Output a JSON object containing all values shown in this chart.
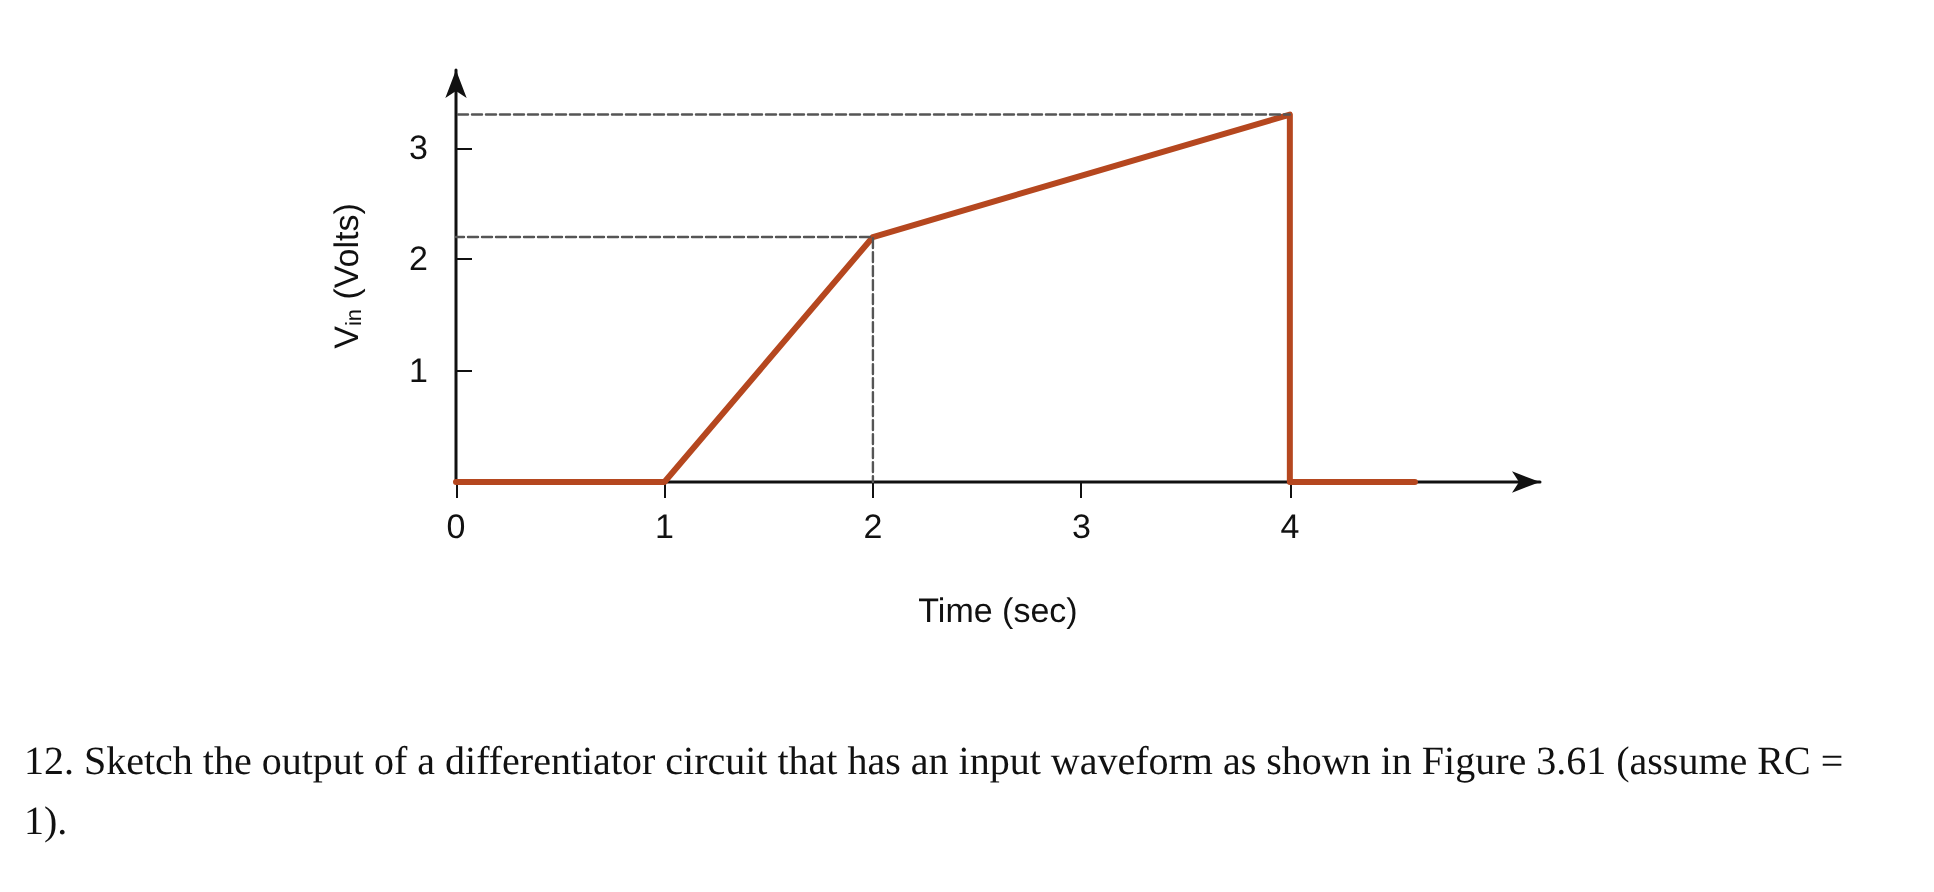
{
  "chart_data": {
    "type": "line",
    "xlabel": "Time (sec)",
    "ylabel": "V$_{in}$ (Volts)",
    "xlim": [
      0,
      5.2
    ],
    "ylim": [
      0,
      3.7
    ],
    "xticks": [
      0,
      1,
      2,
      3,
      4
    ],
    "yticks": [
      1,
      2,
      3
    ],
    "marker": "none",
    "series": [
      {
        "color": "#555555",
        "line_style": "dashed",
        "x": [
          0,
          2,
          2
        ],
        "values": [
          2.2,
          2.2,
          0
        ]
      },
      {
        "color": "#555555",
        "line_style": "dashed",
        "x": [
          0,
          4
        ],
        "values": [
          3.3,
          3.3
        ]
      },
      {
        "color": "#b5471f",
        "line_style": "solid",
        "x": [
          0,
          1,
          2,
          4,
          4,
          4.6
        ],
        "values": [
          0,
          0,
          2.2,
          3.3,
          0,
          0
        ]
      }
    ],
    "annotations": [
      "12. Sketch the output of a differentiator circuit that has an input waveform as shown in Figure 3.61 (assume RC = 1)."
    ]
  }
}
